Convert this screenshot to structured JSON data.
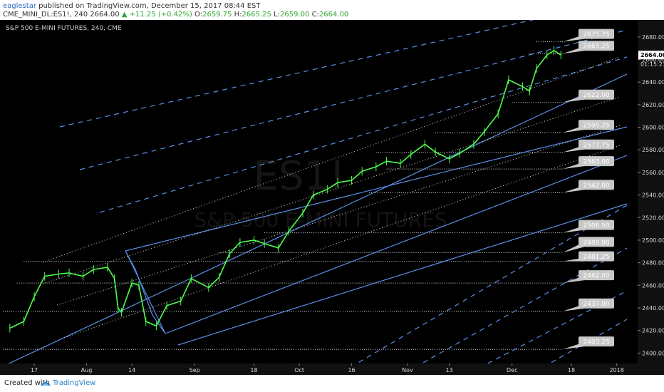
{
  "header": {
    "author": "eaglestar",
    "published_text": "published on TradingView.com, December 15, 2017 08:44 EST",
    "symbol_line": "CME_MINI_DL:ES1!, 240",
    "last": "2664.00",
    "change": "+11.25 (+0.42%)",
    "o_label": "O:",
    "o_value": "2659.75",
    "h_label": "H:",
    "h_value": "2665.25",
    "l_label": "L:",
    "l_value": "2659.00",
    "c_label": "C:",
    "c_value": "2664.00"
  },
  "chart_header": "S&P 500 E-MINI FUTURES, 240, CME",
  "watermark": {
    "symbol": "ES1!",
    "name": "S&P 500 E-MINI FUTURES"
  },
  "footer": {
    "created_with": "Created with",
    "brand": "TradingView"
  },
  "colors": {
    "background": "#000000",
    "price_up": "#4cff4c",
    "channel_line": "#5b8fe8",
    "level_line": "#e0e0e0",
    "label_bg": "#c8c8c8",
    "axis_text": "#d8d8d8",
    "last_price_bg": "#ffffff"
  },
  "chart_data": {
    "type": "line",
    "title": "S&P 500 E-MINI FUTURES, 240, CME",
    "y_axis": {
      "ticks": [
        2400,
        2420,
        2440,
        2460,
        2480,
        2500,
        2520,
        2540,
        2560,
        2580,
        2600,
        2620,
        2640,
        2660,
        2680
      ],
      "ylim": [
        2392,
        2690
      ]
    },
    "x_axis": {
      "labels": [
        "17",
        "Aug",
        "14",
        "Sep",
        "18",
        "Oct",
        "16",
        "Nov",
        "13",
        "Dec",
        "18",
        "2018"
      ]
    },
    "last_price": {
      "value": "2664.00",
      "countdown": "01:15:23"
    },
    "price_series": {
      "name": "ES1!",
      "x": [
        "Jul 10",
        "Jul 14",
        "Jul 17",
        "Jul 20",
        "Jul 24",
        "Jul 27",
        "Jul 31",
        "Aug 3",
        "Aug 7",
        "Aug 9",
        "Aug 10",
        "Aug 11",
        "Aug 14",
        "Aug 16",
        "Aug 18",
        "Aug 21",
        "Aug 24",
        "Aug 28",
        "Aug 31",
        "Sep 5",
        "Sep 8",
        "Sep 11",
        "Sep 14",
        "Sep 18",
        "Sep 21",
        "Sep 25",
        "Sep 28",
        "Oct 2",
        "Oct 5",
        "Oct 9",
        "Oct 12",
        "Oct 16",
        "Oct 19",
        "Oct 23",
        "Oct 26",
        "Oct 30",
        "Nov 2",
        "Nov 6",
        "Nov 9",
        "Nov 13",
        "Nov 16",
        "Nov 20",
        "Nov 23",
        "Nov 27",
        "Nov 30",
        "Dec 4",
        "Dec 6",
        "Dec 8",
        "Dec 11",
        "Dec 13",
        "Dec 15"
      ],
      "values": [
        2422,
        2428,
        2450,
        2468,
        2470,
        2471,
        2468,
        2474,
        2476,
        2466,
        2440,
        2436,
        2462,
        2460,
        2428,
        2424,
        2442,
        2446,
        2466,
        2458,
        2467,
        2488,
        2498,
        2500,
        2497,
        2493,
        2508,
        2524,
        2540,
        2545,
        2551,
        2553,
        2561,
        2565,
        2570,
        2568,
        2576,
        2585,
        2578,
        2572,
        2577,
        2585,
        2596,
        2612,
        2642,
        2636,
        2632,
        2652,
        2664,
        2668,
        2664
      ]
    },
    "level_labels": [
      "2675.75",
      "2665.25",
      "2622.00",
      "2595.25",
      "2577.75",
      "2563.00",
      "2542.00",
      "2506.50",
      "2489.00",
      "2481.25",
      "2462.00",
      "2437.00",
      "2403.25"
    ]
  }
}
